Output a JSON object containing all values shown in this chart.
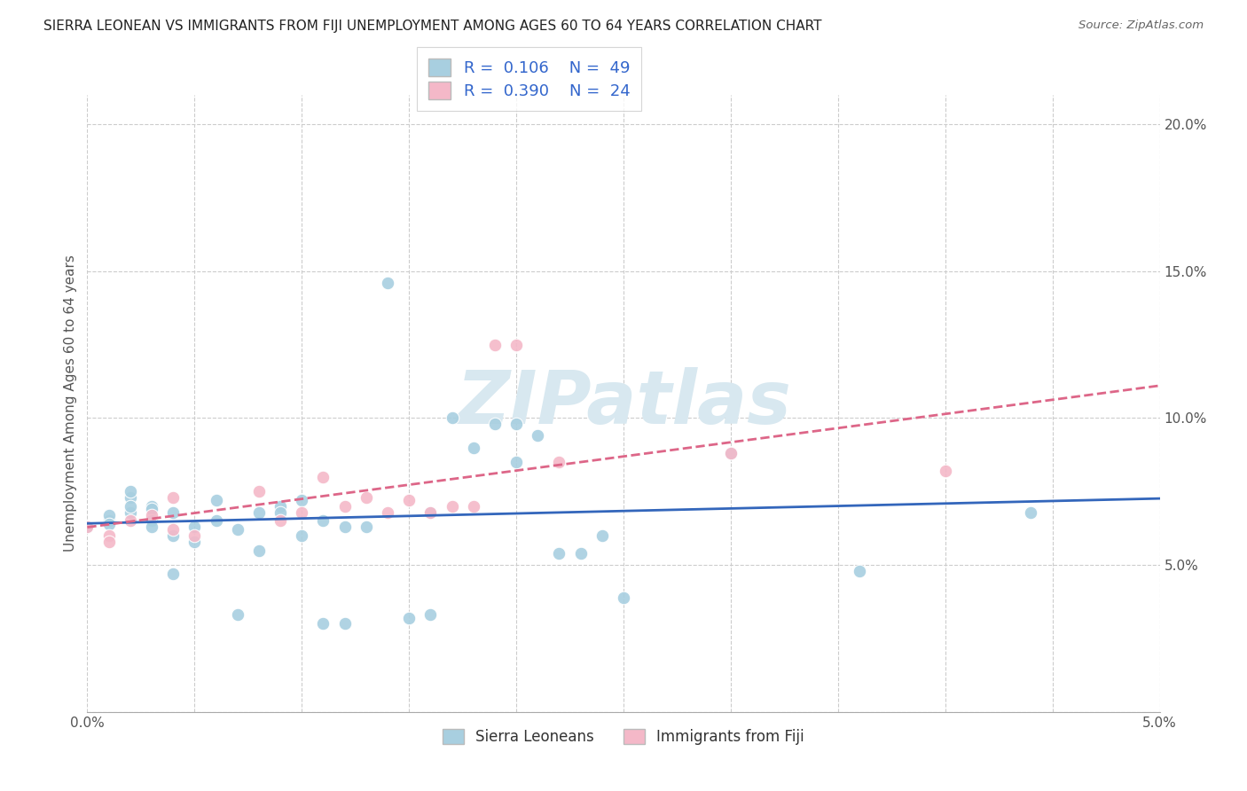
{
  "title": "SIERRA LEONEAN VS IMMIGRANTS FROM FIJI UNEMPLOYMENT AMONG AGES 60 TO 64 YEARS CORRELATION CHART",
  "source": "Source: ZipAtlas.com",
  "ylabel": "Unemployment Among Ages 60 to 64 years",
  "xmin": 0.0,
  "xmax": 0.05,
  "ymin": 0.0,
  "ymax": 0.21,
  "xticks": [
    0.0,
    0.005,
    0.01,
    0.015,
    0.02,
    0.025,
    0.03,
    0.035,
    0.04,
    0.045,
    0.05
  ],
  "xtick_labels_show": {
    "0.0": "0.0%",
    "0.05": "5.0%"
  },
  "yticks": [
    0.0,
    0.05,
    0.1,
    0.15,
    0.2
  ],
  "ytick_labels": [
    "",
    "5.0%",
    "10.0%",
    "15.0%",
    "20.0%"
  ],
  "legend1_R": "0.106",
  "legend1_N": "49",
  "legend2_R": "0.390",
  "legend2_N": "24",
  "blue_scatter": "#a8cfe0",
  "pink_scatter": "#f4b8c8",
  "line_blue": "#3366bb",
  "line_pink": "#dd6688",
  "legend_value_color": "#3366cc",
  "watermark_color": "#d8e8f0",
  "bg_color": "#ffffff",
  "grid_color": "#cccccc",
  "sierra_x": [
    0.0,
    0.001,
    0.001,
    0.001,
    0.002,
    0.002,
    0.002,
    0.002,
    0.003,
    0.003,
    0.003,
    0.003,
    0.004,
    0.004,
    0.004,
    0.005,
    0.005,
    0.006,
    0.006,
    0.007,
    0.007,
    0.008,
    0.008,
    0.009,
    0.009,
    0.01,
    0.01,
    0.011,
    0.011,
    0.012,
    0.012,
    0.013,
    0.014,
    0.015,
    0.016,
    0.016,
    0.017,
    0.018,
    0.019,
    0.02,
    0.02,
    0.021,
    0.022,
    0.023,
    0.024,
    0.025,
    0.03,
    0.036,
    0.044
  ],
  "sierra_y": [
    0.063,
    0.065,
    0.067,
    0.064,
    0.068,
    0.073,
    0.07,
    0.075,
    0.07,
    0.069,
    0.065,
    0.063,
    0.068,
    0.06,
    0.047,
    0.063,
    0.058,
    0.065,
    0.072,
    0.062,
    0.033,
    0.055,
    0.068,
    0.07,
    0.068,
    0.072,
    0.06,
    0.065,
    0.03,
    0.063,
    0.03,
    0.063,
    0.146,
    0.032,
    0.068,
    0.033,
    0.1,
    0.09,
    0.098,
    0.098,
    0.085,
    0.094,
    0.054,
    0.054,
    0.06,
    0.039,
    0.088,
    0.048,
    0.068
  ],
  "fiji_x": [
    0.0,
    0.001,
    0.001,
    0.002,
    0.003,
    0.004,
    0.004,
    0.005,
    0.008,
    0.009,
    0.01,
    0.011,
    0.012,
    0.013,
    0.014,
    0.015,
    0.016,
    0.017,
    0.018,
    0.019,
    0.02,
    0.022,
    0.03,
    0.04
  ],
  "fiji_y": [
    0.063,
    0.06,
    0.058,
    0.065,
    0.067,
    0.073,
    0.062,
    0.06,
    0.075,
    0.065,
    0.068,
    0.08,
    0.07,
    0.073,
    0.068,
    0.072,
    0.068,
    0.07,
    0.07,
    0.125,
    0.125,
    0.085,
    0.088,
    0.082
  ]
}
